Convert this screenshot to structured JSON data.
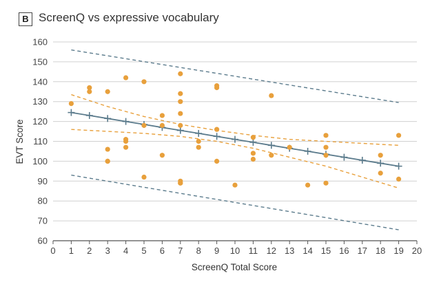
{
  "panel_label": "B",
  "chart_data": {
    "type": "scatter",
    "title": "ScreenQ vs expressive vocabulary",
    "xlabel": "ScreenQ Total Score",
    "ylabel": "EVT Score",
    "xlim": [
      0,
      20
    ],
    "ylim": [
      60,
      160
    ],
    "xticks": [
      0,
      1,
      2,
      3,
      4,
      5,
      6,
      7,
      8,
      9,
      10,
      11,
      12,
      13,
      14,
      15,
      16,
      17,
      18,
      19,
      20
    ],
    "yticks": [
      60,
      70,
      80,
      90,
      100,
      110,
      120,
      130,
      140,
      150,
      160
    ],
    "grid": "horizontal",
    "colors": {
      "points": "#e8a03c",
      "fit": "#5b7b8c",
      "confidence": "#e8a03c",
      "prediction": "#5b7b8c",
      "grid": "#d0d0d0"
    },
    "series": [
      {
        "name": "observations",
        "kind": "points",
        "x": [
          1,
          2,
          2,
          3,
          3,
          3,
          3,
          4,
          4,
          4,
          4,
          5,
          5,
          5,
          6,
          6,
          6,
          7,
          7,
          7,
          7,
          7,
          7,
          7,
          7,
          8,
          8,
          9,
          9,
          9,
          9,
          10,
          11,
          11,
          11,
          12,
          12,
          13,
          14,
          15,
          15,
          15,
          15,
          18,
          18,
          19,
          19
        ],
        "y": [
          129,
          137,
          135,
          135,
          106,
          100,
          100,
          142,
          111,
          110,
          107,
          140,
          118,
          92,
          123,
          118,
          103,
          144,
          134,
          130,
          124,
          118,
          90,
          89,
          89,
          110,
          107,
          138,
          137,
          116,
          100,
          88,
          112,
          104,
          101,
          133,
          103,
          107,
          88,
          113,
          107,
          103,
          89,
          103,
          94,
          113,
          91
        ]
      },
      {
        "name": "fitted regression",
        "kind": "line",
        "x": [
          1,
          2,
          3,
          4,
          5,
          6,
          7,
          8,
          9,
          10,
          11,
          12,
          13,
          14,
          15,
          16,
          17,
          18,
          19
        ],
        "y": [
          124.5,
          123.0,
          121.5,
          120.0,
          118.5,
          117.0,
          115.5,
          114.0,
          112.5,
          111.0,
          109.5,
          108.0,
          106.5,
          105.0,
          103.5,
          102.0,
          100.5,
          99.0,
          97.5
        ]
      },
      {
        "name": "95% CI upper",
        "kind": "dashed",
        "x": [
          1,
          3,
          5,
          7,
          9,
          11,
          13,
          15,
          17,
          19
        ],
        "y": [
          133.5,
          127.5,
          122.5,
          118.5,
          115.5,
          113.0,
          111.0,
          110.0,
          109.0,
          108.0
        ]
      },
      {
        "name": "95% CI lower",
        "kind": "dashed",
        "x": [
          1,
          3,
          5,
          7,
          9,
          11,
          13,
          15,
          17,
          19
        ],
        "y": [
          116.0,
          115.0,
          114.0,
          112.5,
          110.0,
          106.5,
          102.0,
          97.5,
          92.0,
          86.5
        ]
      },
      {
        "name": "prediction upper",
        "kind": "dashed",
        "x": [
          1,
          19
        ],
        "y": [
          156.0,
          129.5
        ]
      },
      {
        "name": "prediction lower",
        "kind": "dashed",
        "x": [
          1,
          19
        ],
        "y": [
          93.0,
          65.5
        ]
      }
    ]
  }
}
